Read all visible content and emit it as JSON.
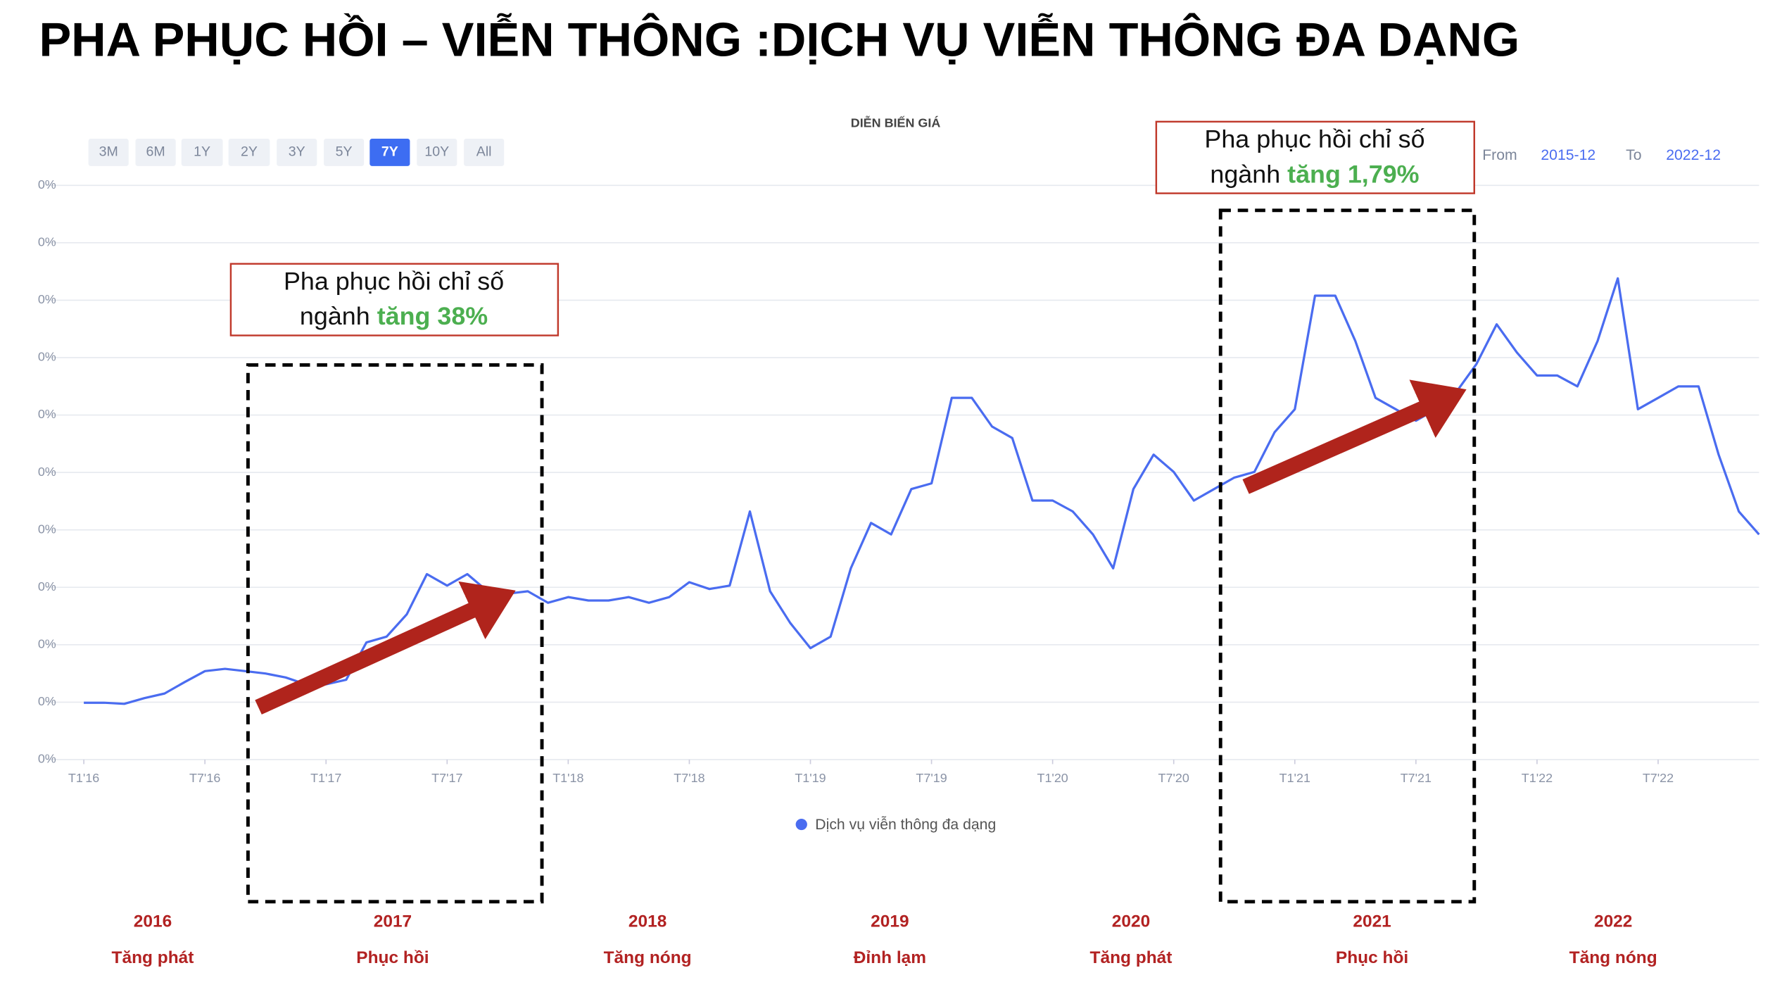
{
  "title": "PHA PHỤC HỒI – VIỄN THÔNG :DỊCH VỤ VIỄN THÔNG ĐA DẠNG",
  "range_buttons": {
    "labels": [
      "3M",
      "6M",
      "1Y",
      "2Y",
      "3Y",
      "5Y",
      "7Y",
      "10Y",
      "All"
    ],
    "active_index": 6
  },
  "date_range": {
    "from_label": "From",
    "from": "2015-12",
    "to_label": "To",
    "to": "2022-12"
  },
  "chart_data": {
    "type": "line",
    "title": "DIỄN BIẾN GIÁ",
    "x": [
      "2016-01",
      "2016-02",
      "2016-03",
      "2016-04",
      "2016-05",
      "2016-06",
      "2016-07",
      "2016-08",
      "2016-09",
      "2016-10",
      "2016-11",
      "2016-12",
      "2017-01",
      "2017-02",
      "2017-03",
      "2017-04",
      "2017-05",
      "2017-06",
      "2017-07",
      "2017-08",
      "2017-09",
      "2017-10",
      "2017-11",
      "2017-12",
      "2018-01",
      "2018-02",
      "2018-03",
      "2018-04",
      "2018-05",
      "2018-06",
      "2018-07",
      "2018-08",
      "2018-09",
      "2018-10",
      "2018-11",
      "2018-12",
      "2019-01",
      "2019-02",
      "2019-03",
      "2019-04",
      "2019-05",
      "2019-06",
      "2019-07",
      "2019-08",
      "2019-09",
      "2019-10",
      "2019-11",
      "2019-12",
      "2020-01",
      "2020-02",
      "2020-03",
      "2020-04",
      "2020-05",
      "2020-06",
      "2020-07",
      "2020-08",
      "2020-09",
      "2020-10",
      "2020-11",
      "2020-12",
      "2021-01",
      "2021-02",
      "2021-03",
      "2021-04",
      "2021-05",
      "2021-06",
      "2021-07",
      "2021-08",
      "2021-09",
      "2021-10",
      "2021-11",
      "2021-12",
      "2022-01",
      "2022-02",
      "2022-03",
      "2022-04",
      "2022-05",
      "2022-06",
      "2022-07",
      "2022-08",
      "2022-09",
      "2022-10",
      "2022-11",
      "2022-12"
    ],
    "series": [
      {
        "name": "Dịch vụ viễn thông đa dạng",
        "color": "#4a6cf0",
        "values": [
          0.99,
          0.99,
          0.97,
          1.07,
          1.15,
          1.35,
          1.54,
          1.58,
          1.54,
          1.5,
          1.43,
          1.31,
          1.31,
          1.39,
          2.04,
          2.14,
          2.53,
          3.23,
          3.03,
          3.23,
          2.93,
          2.89,
          2.93,
          2.73,
          2.83,
          2.77,
          2.77,
          2.83,
          2.73,
          2.83,
          3.09,
          2.97,
          3.03,
          4.32,
          2.93,
          2.38,
          1.94,
          2.14,
          3.33,
          4.12,
          3.92,
          4.71,
          4.81,
          6.3,
          6.3,
          5.8,
          5.6,
          4.51,
          4.51,
          4.32,
          3.92,
          3.33,
          4.71,
          5.31,
          5.01,
          4.51,
          4.71,
          4.91,
          5.01,
          5.7,
          6.1,
          8.08,
          8.08,
          7.29,
          6.3,
          6.1,
          5.9,
          6.1,
          6.4,
          6.89,
          7.58,
          7.09,
          6.69,
          6.69,
          6.5,
          7.29,
          8.38,
          6.1,
          6.3,
          6.5,
          6.5,
          5.31,
          4.32,
          3.92
        ]
      }
    ],
    "xlim": [
      "2016-01",
      "2022-12"
    ],
    "xticks": [
      {
        "value": "2016-01",
        "label": "T1'16"
      },
      {
        "value": "2016-07",
        "label": "T7'16"
      },
      {
        "value": "2017-01",
        "label": "T1'17"
      },
      {
        "value": "2017-07",
        "label": "T7'17"
      },
      {
        "value": "2018-01",
        "label": "T1'18"
      },
      {
        "value": "2018-07",
        "label": "T7'18"
      },
      {
        "value": "2019-01",
        "label": "T1'19"
      },
      {
        "value": "2019-07",
        "label": "T7'19"
      },
      {
        "value": "2020-01",
        "label": "T1'20"
      },
      {
        "value": "2020-07",
        "label": "T7'20"
      },
      {
        "value": "2021-01",
        "label": "T1'21"
      },
      {
        "value": "2021-07",
        "label": "T7'21"
      },
      {
        "value": "2022-01",
        "label": "T1'22"
      },
      {
        "value": "2022-07",
        "label": "T7'22"
      }
    ],
    "ylim": [
      0,
      10
    ],
    "yticks": [
      {
        "value": 0,
        "label": "0%"
      },
      {
        "value": 1,
        "label": "0%"
      },
      {
        "value": 2,
        "label": "0%"
      },
      {
        "value": 3,
        "label": "0%"
      },
      {
        "value": 4,
        "label": "0%"
      },
      {
        "value": 5,
        "label": "0%"
      },
      {
        "value": 6,
        "label": "0%"
      },
      {
        "value": 7,
        "label": "0%"
      },
      {
        "value": 8,
        "label": "0%"
      },
      {
        "value": 9,
        "label": "0%"
      },
      {
        "value": 10,
        "label": "0%"
      }
    ],
    "grid": true
  },
  "annotations": [
    {
      "line1": "Pha phục hồi chỉ số",
      "line2": "ngành",
      "highlight": "tăng 38%"
    },
    {
      "line1": "Pha phục hồi chỉ số",
      "line2": "ngành",
      "highlight": "tăng 1,79%"
    }
  ],
  "phases": [
    {
      "year": "2016",
      "label": "Tăng phát"
    },
    {
      "year": "2017",
      "label": "Phục hồi"
    },
    {
      "year": "2018",
      "label": "Tăng nóng"
    },
    {
      "year": "2019",
      "label": "Đỉnh lạm"
    },
    {
      "year": "2020",
      "label": "Tăng phát"
    },
    {
      "year": "2021",
      "label": "Phục hồi"
    },
    {
      "year": "2022",
      "label": "Tăng nóng"
    }
  ]
}
